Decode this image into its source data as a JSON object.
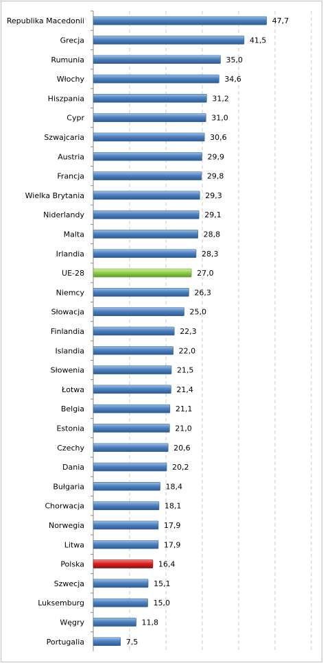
{
  "chart_data": {
    "type": "bar",
    "orientation": "horizontal",
    "title": "",
    "xlabel": "",
    "ylabel": "",
    "xlim": [
      0,
      60
    ],
    "grid": true,
    "legend": "none",
    "colors": {
      "default": "#4f81bd",
      "highlight_eu": "#92d050",
      "highlight_poland": "#c0504d"
    },
    "categories": [
      "Republika Macedonii",
      "Grecja",
      "Rumunia",
      "Włochy",
      "Hiszpania",
      "Cypr",
      "Szwajcaria",
      "Austria",
      "Francja",
      "Wielka Brytania",
      "Niderlandy",
      "Malta",
      "Irlandia",
      "UE-28",
      "Niemcy",
      "Słowacja",
      "Finlandia",
      "Islandia",
      "Słowenia",
      "Łotwa",
      "Belgia",
      "Estonia",
      "Czechy",
      "Dania",
      "Bułgaria",
      "Chorwacja",
      "Norwegia",
      "Litwa",
      "Polska",
      "Szwecja",
      "Luksemburg",
      "Węgry",
      "Portugalia"
    ],
    "values": [
      47.7,
      41.5,
      35.0,
      34.6,
      31.2,
      31.0,
      30.6,
      29.9,
      29.8,
      29.3,
      29.1,
      28.8,
      28.3,
      27.0,
      26.3,
      25.0,
      22.3,
      22.0,
      21.5,
      21.4,
      21.1,
      21.0,
      20.6,
      20.2,
      18.4,
      18.1,
      17.9,
      17.9,
      16.4,
      15.1,
      15.0,
      11.8,
      7.5
    ],
    "value_labels": [
      "47,7",
      "41,5",
      "35,0",
      "34,6",
      "31,2",
      "31,0",
      "30,6",
      "29,9",
      "29,8",
      "29,3",
      "29,1",
      "28,8",
      "28,3",
      "27,0",
      "26,3",
      "25,0",
      "22,3",
      "22,0",
      "21,5",
      "21,4",
      "21,1",
      "21,0",
      "20,6",
      "20,2",
      "18,4",
      "18,1",
      "17,9",
      "17,9",
      "16,4",
      "15,1",
      "15,0",
      "11,8",
      "7,5"
    ],
    "highlight": {
      "UE-28": "highlight_eu",
      "Polska": "highlight_poland"
    }
  }
}
